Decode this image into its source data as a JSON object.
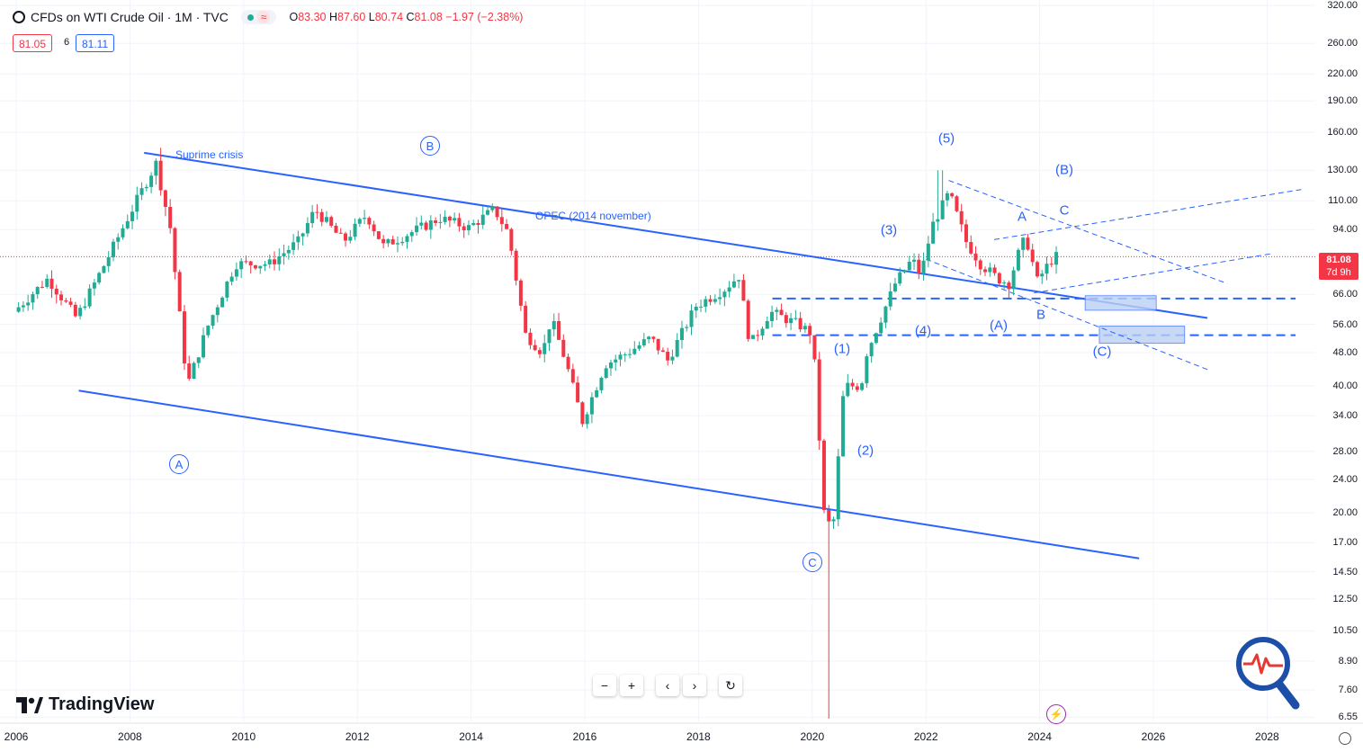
{
  "header": {
    "title": "CFDs on WTI Crude Oil · 1M · TVC",
    "open_label": "O",
    "open": "83.30",
    "high_label": "H",
    "high": "87.60",
    "low_label": "L",
    "low": "80.74",
    "close_label": "C",
    "close": "81.08",
    "change": "−1.97 (−2.38%)",
    "sell_price": "81.05",
    "spread": "6",
    "buy_price": "81.11",
    "pill_symbol": "≈"
  },
  "price_tag": {
    "price": "81.08",
    "countdown": "7d 9h"
  },
  "brand": "TradingView",
  "toolbar": {
    "zoom_out": "−",
    "zoom_in": "+",
    "scroll_left": "‹",
    "scroll_right": "›",
    "reset": "↻"
  },
  "annotations": {
    "suprime": "Suprime crisis",
    "opec": "OPEC (2014 november)",
    "circ_A": "A",
    "circ_B": "B",
    "circ_C": "C",
    "w1": "(1)",
    "w2": "(2)",
    "w3": "(3)",
    "w4": "(4)",
    "w5": "(5)",
    "wA": "(A)",
    "wB": "(B)",
    "wC": "(C)",
    "a": "A",
    "b": "B",
    "c": "C"
  },
  "colors": {
    "up": "#22ab94",
    "down": "#f23645",
    "drawing": "#2962ff",
    "zone": "#bbd0f5"
  },
  "icons": {
    "symbol": "circle-icon",
    "settings": "gear-icon",
    "magnifier": "magnifier-pulse-icon",
    "ai": "lightning-icon"
  },
  "chart_data": {
    "type": "candlestick",
    "interval": "1M",
    "log_scale": true,
    "x_ticks": [
      "2006",
      "2008",
      "2010",
      "2012",
      "2014",
      "2016",
      "2018",
      "2020",
      "2022",
      "2024",
      "2026",
      "2028"
    ],
    "y_ticks": [
      320,
      260,
      220,
      190,
      160,
      130,
      110,
      94,
      66,
      56,
      48,
      40,
      34,
      28,
      24,
      20,
      17,
      14.5,
      12.5,
      10.5,
      8.9,
      7.6,
      6.55
    ],
    "y_tick_labels": [
      "320.00",
      "260.00",
      "220.00",
      "190.00",
      "160.00",
      "130.00",
      "110.00",
      "94.00",
      "66.00",
      "56.00",
      "48.00",
      "40.00",
      "34.00",
      "28.00",
      "24.00",
      "20.00",
      "17.00",
      "14.50",
      "12.50",
      "10.50",
      "8.90",
      "7.60",
      "6.55"
    ],
    "ylim": [
      6.4,
      320
    ],
    "current_price": 81.08,
    "anchors": [
      [
        2006.0,
        60
      ],
      [
        2006.6,
        72
      ],
      [
        2007.1,
        58
      ],
      [
        2007.6,
        78
      ],
      [
        2008.0,
        100
      ],
      [
        2008.5,
        135
      ],
      [
        2008.75,
        95
      ],
      [
        2009.05,
        40
      ],
      [
        2009.4,
        55
      ],
      [
        2009.9,
        78
      ],
      [
        2010.5,
        78
      ],
      [
        2011.0,
        88
      ],
      [
        2011.3,
        105
      ],
      [
        2011.8,
        88
      ],
      [
        2012.2,
        102
      ],
      [
        2012.5,
        86
      ],
      [
        2012.8,
        90
      ],
      [
        2013.5,
        100
      ],
      [
        2014.0,
        95
      ],
      [
        2014.45,
        105
      ],
      [
        2014.7,
        92
      ],
      [
        2015.0,
        53
      ],
      [
        2015.3,
        48
      ],
      [
        2015.45,
        58
      ],
      [
        2015.7,
        46
      ],
      [
        2016.0,
        33
      ],
      [
        2016.4,
        45
      ],
      [
        2016.8,
        48
      ],
      [
        2017.2,
        52
      ],
      [
        2017.5,
        46
      ],
      [
        2018.0,
        62
      ],
      [
        2018.5,
        68
      ],
      [
        2018.75,
        73
      ],
      [
        2018.95,
        50
      ],
      [
        2019.3,
        60
      ],
      [
        2019.8,
        56
      ],
      [
        2020.05,
        53
      ],
      [
        2020.25,
        20
      ],
      [
        2020.4,
        18
      ],
      [
        2020.6,
        40
      ],
      [
        2020.9,
        40
      ],
      [
        2021.0,
        48
      ],
      [
        2021.5,
        70
      ],
      [
        2021.8,
        80
      ],
      [
        2021.95,
        73
      ],
      [
        2022.15,
        96
      ],
      [
        2022.45,
        115
      ],
      [
        2022.75,
        88
      ],
      [
        2023.0,
        78
      ],
      [
        2023.3,
        72
      ],
      [
        2023.5,
        70
      ],
      [
        2023.7,
        85
      ],
      [
        2023.8,
        90
      ],
      [
        2024.0,
        71
      ],
      [
        2024.2,
        78
      ],
      [
        2024.3,
        81.08
      ]
    ],
    "trendlines": [
      {
        "from": [
          2008.25,
          143
        ],
        "to": [
          2026.95,
          58
        ]
      },
      {
        "from": [
          2007.1,
          39
        ],
        "to": [
          2025.75,
          15.6
        ]
      }
    ],
    "levels": [
      64.5,
      52.8
    ]
  }
}
